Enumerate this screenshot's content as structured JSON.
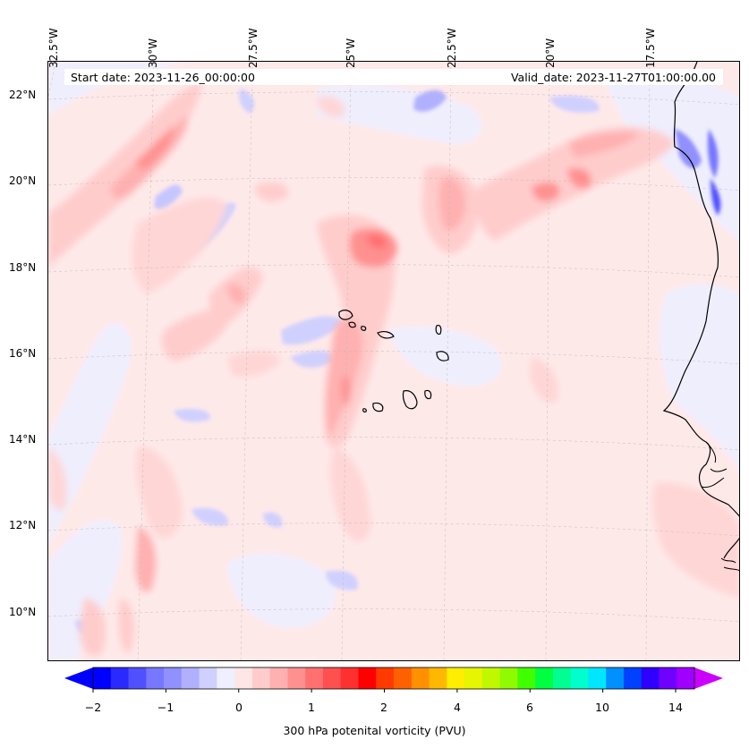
{
  "map": {
    "projection": "north-polar stereographic",
    "lon_labels": [
      "32.5°W",
      "30°W",
      "27.5°W",
      "25°W",
      "22.5°W",
      "20°W",
      "17.5°W"
    ],
    "lat_labels": [
      "22°N",
      "20°N",
      "18°N",
      "16°N",
      "14°N",
      "12°N",
      "10°N"
    ],
    "start_date": "Start date: 2023-11-26_00:00:00",
    "valid_date": "Valid_date: 2023-11-27T01:00:00.00"
  },
  "colorbar": {
    "label": "300 hPa potenital vorticity (PVU)",
    "ticks": [
      "−2",
      "−1",
      "0",
      "1",
      "2",
      "4",
      "6",
      "10",
      "14"
    ],
    "colors": [
      "#0000ff",
      "#2a2aff",
      "#5050ff",
      "#7777ff",
      "#9090ff",
      "#b0b0ff",
      "#d0d0ff",
      "#efefff",
      "#ffe6e6",
      "#ffcccc",
      "#ffb0b0",
      "#ff9090",
      "#ff7070",
      "#ff5050",
      "#ff3030",
      "#ff0000",
      "#ff3a00",
      "#ff6000",
      "#ff9000",
      "#ffb800",
      "#ffee00",
      "#e6f500",
      "#c0f800",
      "#90fa00",
      "#40ff00",
      "#00ff40",
      "#00ff90",
      "#00ffcc",
      "#00e6ff",
      "#0090ff",
      "#0040ff",
      "#3000ff",
      "#7000ff",
      "#a000ff"
    ],
    "extend_min_color": "#0000ff",
    "extend_max_color": "#cc00ff"
  }
}
